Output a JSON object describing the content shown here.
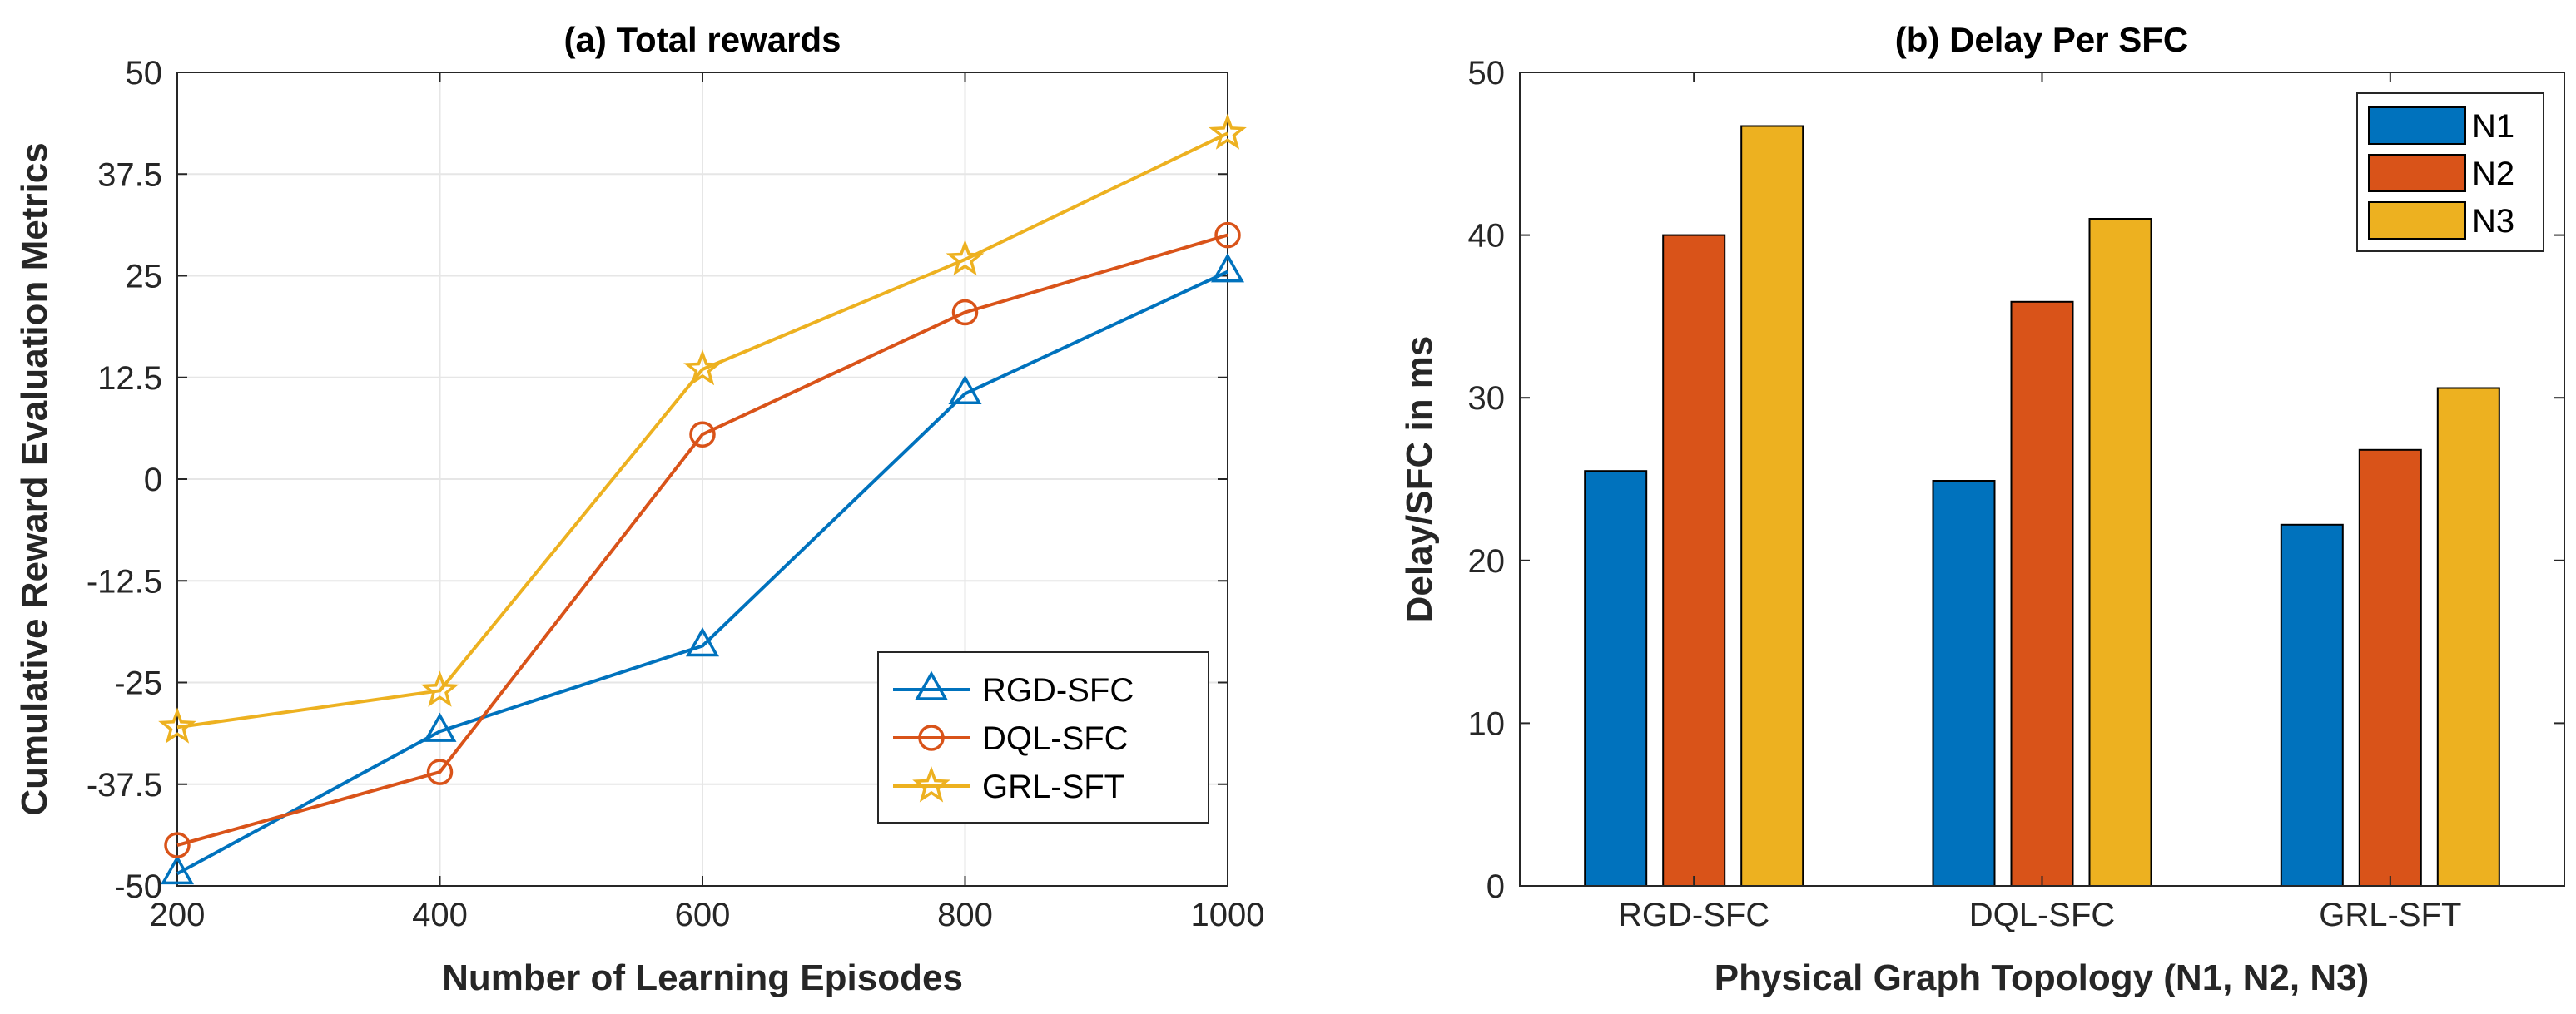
{
  "chart_data": [
    {
      "type": "line",
      "title": "(a) Total rewards",
      "xlabel": "Number of Learning Episodes",
      "ylabel": "Cumulative Reward Evaluation Metrics",
      "x": [
        200,
        400,
        600,
        800,
        1000
      ],
      "xlim": [
        200,
        1000
      ],
      "ylim": [
        -50,
        50
      ],
      "xticks": [
        200,
        400,
        600,
        800,
        1000
      ],
      "yticks": [
        -50,
        -37.5,
        -25,
        -12.5,
        0,
        12.5,
        25,
        37.5,
        50
      ],
      "xtick_labels": [
        "200",
        "400",
        "600",
        "800",
        "1000"
      ],
      "ytick_labels": [
        "-50",
        "-37.5",
        "-25",
        "-12.5",
        "0",
        "12.5",
        "25",
        "37.5",
        "50"
      ],
      "grid": true,
      "legend_position": "bottom-right",
      "series": [
        {
          "name": "RGD-SFC",
          "marker": "triangle",
          "color": "#0072BD",
          "values": [
            -48.5,
            -31,
            -20.5,
            10.5,
            25.5
          ]
        },
        {
          "name": "DQL-SFC",
          "marker": "circle",
          "color": "#D95319",
          "values": [
            -45,
            -36,
            5.5,
            20.5,
            30
          ]
        },
        {
          "name": "GRL-SFT",
          "marker": "star",
          "color": "#EDB120",
          "values": [
            -30.5,
            -26,
            13.5,
            27,
            42.5
          ]
        }
      ]
    },
    {
      "type": "bar",
      "title": "(b) Delay Per SFC",
      "xlabel": "Physical Graph Topology (N1, N2, N3)",
      "ylabel": "Delay/SFC in ms",
      "categories": [
        "RGD-SFC",
        "DQL-SFC",
        "GRL-SFT"
      ],
      "ylim": [
        0,
        50
      ],
      "yticks": [
        0,
        10,
        20,
        30,
        40,
        50
      ],
      "ytick_labels": [
        "0",
        "10",
        "20",
        "30",
        "40",
        "50"
      ],
      "grid": false,
      "legend_position": "top-right",
      "series": [
        {
          "name": "N1",
          "color": "#0072BD",
          "values": [
            25.5,
            24.9,
            22.2
          ]
        },
        {
          "name": "N2",
          "color": "#D95319",
          "values": [
            40,
            35.9,
            26.8
          ]
        },
        {
          "name": "N3",
          "color": "#EDB120",
          "values": [
            46.7,
            41,
            30.6
          ]
        }
      ]
    }
  ]
}
